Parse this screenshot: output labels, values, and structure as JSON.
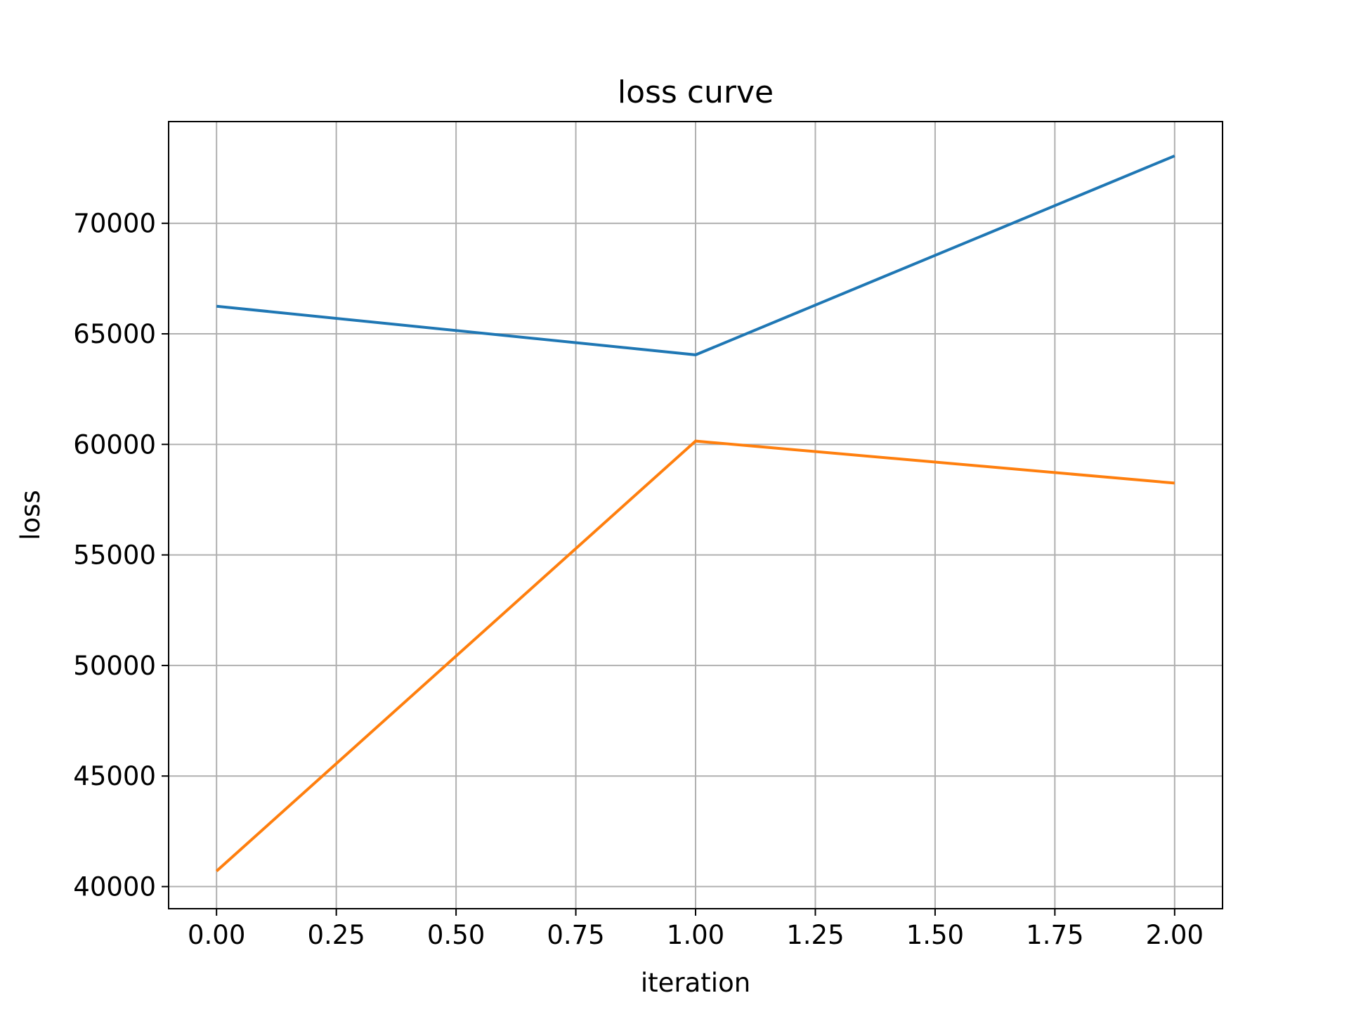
{
  "chart_data": {
    "type": "line",
    "title": "loss curve",
    "xlabel": "iteration",
    "ylabel": "loss",
    "x": [
      0,
      1,
      2
    ],
    "xlim": [
      -0.1,
      2.1
    ],
    "ylim": [
      39000,
      74600
    ],
    "xticks": [
      "0.00",
      "0.25",
      "0.50",
      "0.75",
      "1.00",
      "1.25",
      "1.50",
      "1.75",
      "2.00"
    ],
    "xtick_values": [
      0,
      0.25,
      0.5,
      0.75,
      1.0,
      1.25,
      1.5,
      1.75,
      2.0
    ],
    "yticks": [
      "40000",
      "45000",
      "50000",
      "55000",
      "60000",
      "65000",
      "70000"
    ],
    "ytick_values": [
      40000,
      45000,
      50000,
      55000,
      60000,
      65000,
      70000
    ],
    "grid": true,
    "series": [
      {
        "values": [
          66250,
          64050,
          73050
        ],
        "color": "#1f77b4"
      },
      {
        "values": [
          40700,
          60150,
          58250
        ],
        "color": "#ff7f0e"
      }
    ]
  }
}
